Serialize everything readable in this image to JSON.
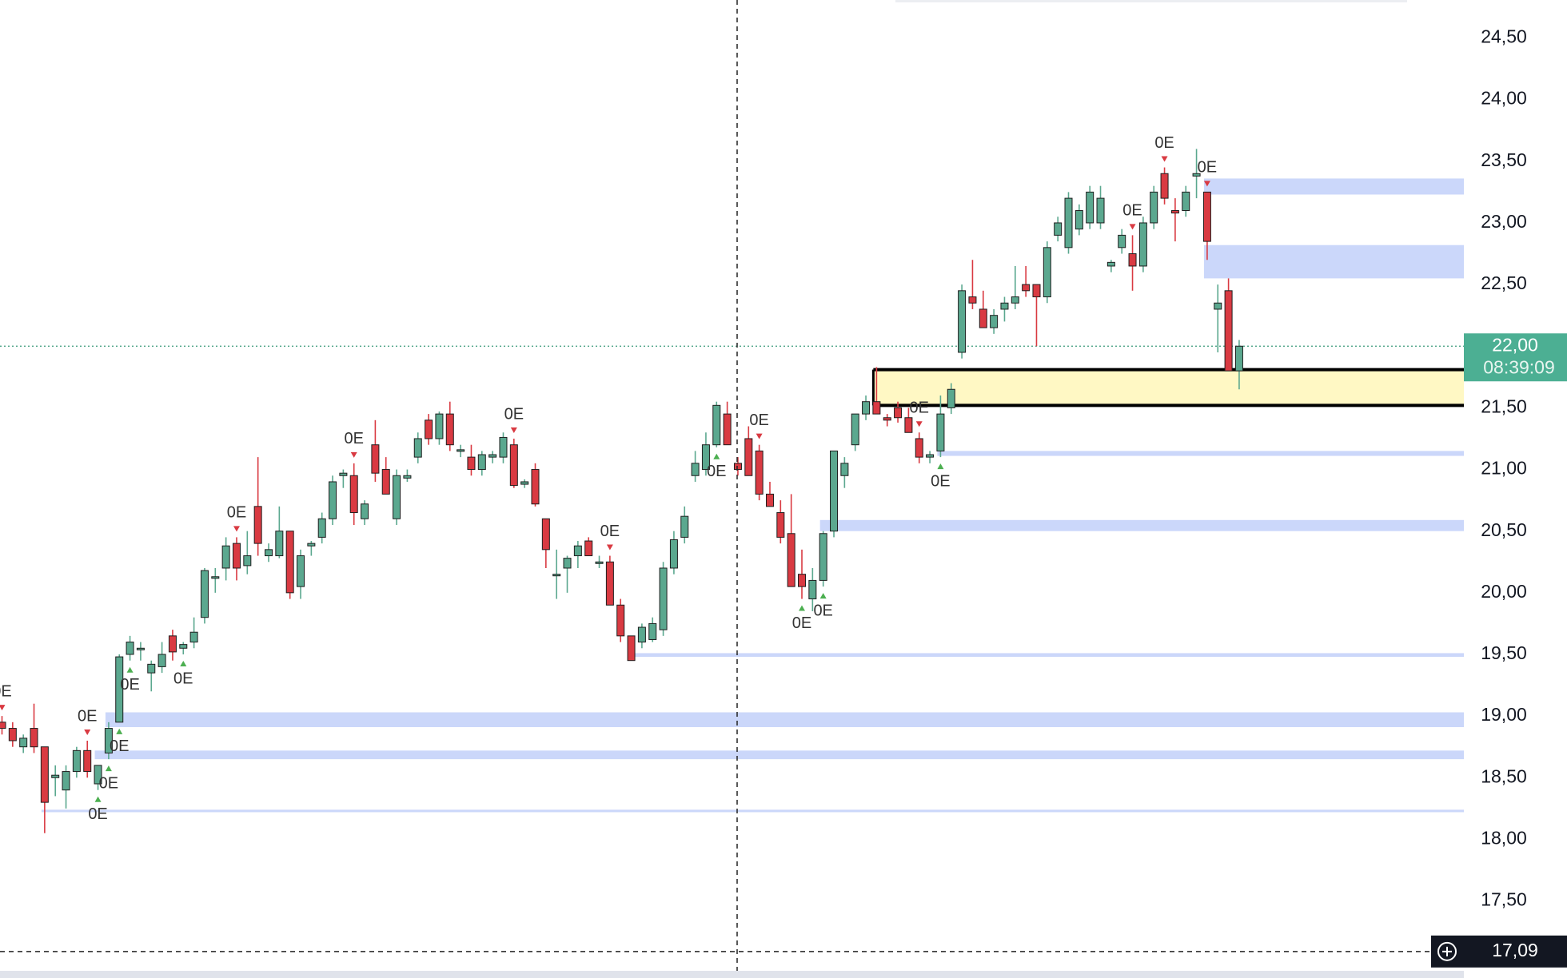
{
  "chart_data": {
    "type": "candlestick",
    "open": [
      18.95,
      18.9,
      18.75,
      18.9,
      18.75,
      18.5,
      18.4,
      18.55,
      18.72,
      18.45,
      18.7,
      18.95,
      19.5,
      19.55,
      19.35,
      19.4,
      19.65,
      19.55,
      19.6,
      19.8,
      20.12,
      20.2,
      20.4,
      20.22,
      20.7,
      20.3,
      20.3,
      20.5,
      20.05,
      20.38,
      20.45,
      20.6,
      20.95,
      20.95,
      20.6,
      21.2,
      21.0,
      20.6,
      20.93,
      21.1,
      21.4,
      21.25,
      21.45,
      21.15,
      21.1,
      21.0,
      21.1,
      21.1,
      21.2,
      20.88,
      21.0,
      20.6,
      20.15,
      20.2,
      20.3,
      20.42,
      20.25,
      20.25,
      19.9,
      19.65,
      19.6,
      19.62,
      19.7,
      20.2,
      20.45,
      20.95,
      21.0,
      21.2,
      21.45,
      21.05,
      21.25,
      21.15,
      20.8,
      20.65,
      20.48,
      20.15,
      19.95,
      20.1,
      20.5,
      20.95,
      21.2,
      21.45,
      21.55,
      21.42,
      21.5,
      21.42,
      21.25,
      21.1,
      21.15,
      21.5,
      21.95,
      22.4,
      22.3,
      22.15,
      22.3,
      22.35,
      22.5,
      22.5,
      22.4,
      22.9,
      22.8,
      22.95,
      23.0,
      23.0,
      22.65,
      22.8,
      22.75,
      22.65,
      23.0,
      23.4,
      23.1,
      23.1,
      23.38,
      23.25,
      22.3,
      22.45,
      21.8
    ],
    "high": [
      19.0,
      18.95,
      18.85,
      19.1,
      18.75,
      18.6,
      18.6,
      18.75,
      18.8,
      18.6,
      18.95,
      19.5,
      19.65,
      19.6,
      19.45,
      19.6,
      19.7,
      19.6,
      19.8,
      20.2,
      20.2,
      20.45,
      20.45,
      20.5,
      21.1,
      20.4,
      20.7,
      20.5,
      20.35,
      20.42,
      20.65,
      20.95,
      21.0,
      21.05,
      20.75,
      21.4,
      21.1,
      21.0,
      21.0,
      21.3,
      21.45,
      21.47,
      21.55,
      21.2,
      21.2,
      21.15,
      21.15,
      21.3,
      21.25,
      20.92,
      21.05,
      20.6,
      20.35,
      20.3,
      20.42,
      20.45,
      20.3,
      20.3,
      19.95,
      19.65,
      19.75,
      19.8,
      20.25,
      20.5,
      20.7,
      21.15,
      21.3,
      21.55,
      21.55,
      21.1,
      21.35,
      21.2,
      20.9,
      20.75,
      20.8,
      20.35,
      20.2,
      20.5,
      21.15,
      21.1,
      21.45,
      21.6,
      21.83,
      21.45,
      21.55,
      21.5,
      21.3,
      21.15,
      21.6,
      21.7,
      22.5,
      22.7,
      22.45,
      22.3,
      22.4,
      22.65,
      22.65,
      22.5,
      22.85,
      23.05,
      23.25,
      23.15,
      23.3,
      23.3,
      22.7,
      22.95,
      22.9,
      23.05,
      23.3,
      23.45,
      23.2,
      23.3,
      23.6,
      23.25,
      22.5,
      22.55,
      22.05
    ],
    "low": [
      18.85,
      18.75,
      18.7,
      18.7,
      18.05,
      18.35,
      18.25,
      18.5,
      18.5,
      18.4,
      18.65,
      18.95,
      19.45,
      19.45,
      19.2,
      19.35,
      19.45,
      19.5,
      19.55,
      19.75,
      20.0,
      20.1,
      20.1,
      20.15,
      20.3,
      20.25,
      20.28,
      19.95,
      19.95,
      20.3,
      20.4,
      20.55,
      20.85,
      20.55,
      20.55,
      20.9,
      20.8,
      20.55,
      20.9,
      21.05,
      21.2,
      21.2,
      21.15,
      21.1,
      20.95,
      20.95,
      21.05,
      21.05,
      20.85,
      20.85,
      20.7,
      20.2,
      19.95,
      20.0,
      20.2,
      20.3,
      20.2,
      19.9,
      19.6,
      19.45,
      19.55,
      19.6,
      19.65,
      20.15,
      20.4,
      20.9,
      20.95,
      21.18,
      21.2,
      20.95,
      20.95,
      20.75,
      20.7,
      20.4,
      20.05,
      19.95,
      19.85,
      20.05,
      20.45,
      20.85,
      21.15,
      21.4,
      21.45,
      21.35,
      21.38,
      21.3,
      21.05,
      21.05,
      21.1,
      21.45,
      21.9,
      22.3,
      22.15,
      22.1,
      22.2,
      22.3,
      22.4,
      22.0,
      22.35,
      22.85,
      22.75,
      22.9,
      22.95,
      22.95,
      22.6,
      22.75,
      22.45,
      22.6,
      22.95,
      23.15,
      22.85,
      23.05,
      23.2,
      22.7,
      21.95,
      21.8,
      21.65
    ],
    "close": [
      18.9,
      18.8,
      18.82,
      18.75,
      18.3,
      18.52,
      18.55,
      18.72,
      18.55,
      18.6,
      18.9,
      19.48,
      19.6,
      19.55,
      19.42,
      19.5,
      19.52,
      19.58,
      19.68,
      20.18,
      20.13,
      20.38,
      20.2,
      20.3,
      20.4,
      20.35,
      20.5,
      20.0,
      20.3,
      20.4,
      20.6,
      20.9,
      20.97,
      20.65,
      20.72,
      20.97,
      20.8,
      20.95,
      20.95,
      21.25,
      21.25,
      21.45,
      21.2,
      21.16,
      21.0,
      21.12,
      21.12,
      21.26,
      20.87,
      20.9,
      20.72,
      20.35,
      20.15,
      20.28,
      20.38,
      20.3,
      20.25,
      19.9,
      19.65,
      19.45,
      19.72,
      19.75,
      20.2,
      20.43,
      20.62,
      21.05,
      21.2,
      21.52,
      21.2,
      21.0,
      20.95,
      20.8,
      20.7,
      20.45,
      20.05,
      20.05,
      20.1,
      20.48,
      21.15,
      21.05,
      21.45,
      21.55,
      21.45,
      21.4,
      21.42,
      21.3,
      21.1,
      21.12,
      21.45,
      21.65,
      22.45,
      22.35,
      22.15,
      22.25,
      22.35,
      22.4,
      22.45,
      22.4,
      22.8,
      23.0,
      23.2,
      23.1,
      23.25,
      23.2,
      22.68,
      22.9,
      22.65,
      23.0,
      23.25,
      23.2,
      23.08,
      23.25,
      23.4,
      22.85,
      22.35,
      21.8,
      22.0
    ],
    "up_color": "#5ba88f",
    "down_color": "#d93a42",
    "ylim": [
      16.875,
      24.808
    ],
    "yticks": [
      {
        "value": 24.5,
        "label": "24,50"
      },
      {
        "value": 24,
        "label": "24,00"
      },
      {
        "value": 23.5,
        "label": "23,50"
      },
      {
        "value": 23,
        "label": "23,00"
      },
      {
        "value": 22.5,
        "label": "22,50"
      },
      {
        "value": 22,
        "label": "22,00"
      },
      {
        "value": 21.5,
        "label": "21,50"
      },
      {
        "value": 21,
        "label": "21,00"
      },
      {
        "value": 20.5,
        "label": "20,50"
      },
      {
        "value": 20,
        "label": "20,00"
      },
      {
        "value": 19.5,
        "label": "19,50"
      },
      {
        "value": 19,
        "label": "19,00"
      },
      {
        "value": 18.5,
        "label": "18,50"
      },
      {
        "value": 18,
        "label": "18,00"
      },
      {
        "value": 17.5,
        "label": "17,50"
      }
    ],
    "zones": [
      {
        "low": 23.23,
        "high": 23.36,
        "from": 113,
        "color": "#cbd7fa"
      },
      {
        "low": 22.55,
        "high": 22.82,
        "from": 113,
        "color": "#cbd7fa"
      },
      {
        "low": 21.52,
        "high": 21.81,
        "from": 82,
        "color": "#fff8c4",
        "border": true
      },
      {
        "low": 21.11,
        "high": 21.15,
        "from": 88,
        "color": "#cbd7fa"
      },
      {
        "low": 20.5,
        "high": 20.59,
        "from": 77,
        "color": "#cbd7fa"
      },
      {
        "low": 19.48,
        "high": 19.51,
        "from": 59,
        "color": "#cbd7fa"
      },
      {
        "low": 18.91,
        "high": 19.03,
        "from": 10,
        "color": "#cbd7fa"
      },
      {
        "low": 18.65,
        "high": 18.72,
        "from": 9,
        "color": "#cbd7fa"
      },
      {
        "low": 18.22,
        "high": 18.24,
        "from": 4,
        "color": "#cbd7fa"
      }
    ],
    "annotations": [
      {
        "text": "0E",
        "index": 0,
        "side": "above"
      },
      {
        "text": "0E",
        "index": 8,
        "side": "above"
      },
      {
        "text": "0E",
        "index": 9,
        "side": "below"
      },
      {
        "text": "0E",
        "index": 10,
        "side": "below"
      },
      {
        "text": "0E",
        "index": 11,
        "side": "below"
      },
      {
        "text": "0E",
        "index": 12,
        "side": "below"
      },
      {
        "text": "0E",
        "index": 17,
        "side": "below"
      },
      {
        "text": "0E",
        "index": 22,
        "side": "above"
      },
      {
        "text": "0E",
        "index": 33,
        "side": "above"
      },
      {
        "text": "0E",
        "index": 48,
        "side": "above"
      },
      {
        "text": "0E",
        "index": 57,
        "side": "above"
      },
      {
        "text": "0E",
        "index": 67,
        "side": "below"
      },
      {
        "text": "0E",
        "index": 71,
        "side": "above"
      },
      {
        "text": "0E",
        "index": 75,
        "side": "below"
      },
      {
        "text": "0E",
        "index": 77,
        "side": "below"
      },
      {
        "text": "0E",
        "index": 86,
        "side": "above"
      },
      {
        "text": "0E",
        "index": 88,
        "side": "below"
      },
      {
        "text": "0E",
        "index": 106,
        "side": "above"
      },
      {
        "text": "0E",
        "index": 109,
        "side": "above"
      },
      {
        "text": "0E",
        "index": 113,
        "side": "above"
      }
    ],
    "last_price": {
      "value": 22,
      "label": "22,00"
    },
    "countdown": "08:39:09",
    "crosshair_price": {
      "value": 17.09,
      "label": "17,09"
    }
  }
}
